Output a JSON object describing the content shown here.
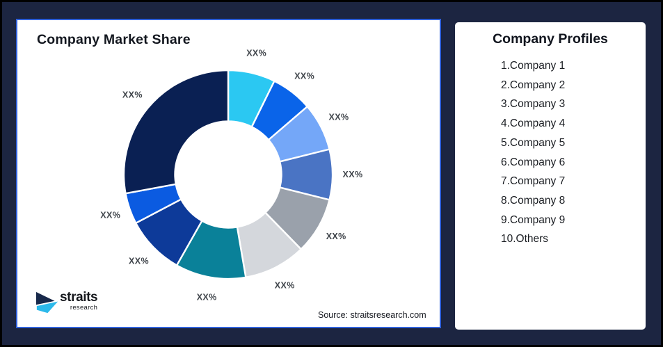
{
  "page": {
    "background": "#1C2541",
    "frame_border": "#000000",
    "card_background": "#FFFFFF",
    "chart_card_border": "#3061DB"
  },
  "chart": {
    "title": "Company Market Share",
    "source": "Source: straitsresearch.com"
  },
  "chart_data": {
    "type": "pie",
    "subtype": "donut",
    "title": "Company Market Share",
    "start_angle_deg": 0,
    "clockwise": true,
    "inner_radius_ratio": 0.51,
    "label_color": "#3F444A",
    "slice_gap_color": "#FFFFFF",
    "slices": [
      {
        "label": "XX%",
        "value": 7.3,
        "color": "#2BC8F2"
      },
      {
        "label": "XX%",
        "value": 6.4,
        "color": "#0A64E9"
      },
      {
        "label": "XX%",
        "value": 7.4,
        "color": "#74A7F8"
      },
      {
        "label": "XX%",
        "value": 7.8,
        "color": "#4A74C4"
      },
      {
        "label": "XX%",
        "value": 8.8,
        "color": "#9AA1AB"
      },
      {
        "label": "XX%",
        "value": 9.6,
        "color": "#D4D7DC"
      },
      {
        "label": "XX%",
        "value": 10.9,
        "color": "#0A8199"
      },
      {
        "label": "XX%",
        "value": 9.1,
        "color": "#0D3A99"
      },
      {
        "label": "XX%",
        "value": 4.8,
        "color": "#0B5BE1"
      },
      {
        "label": "XX%",
        "value": 27.9,
        "color": "#0A2053"
      }
    ]
  },
  "logo": {
    "name": "straits",
    "sub": "research",
    "navy": "#18294B",
    "cyan": "#2CB9EA"
  },
  "profiles": {
    "title": "Company Profiles",
    "items": [
      "1.Company 1",
      "2.Company 2",
      "3.Company 3",
      "4.Company 4",
      "5.Company 5",
      "6.Company 6",
      "7.Company 7",
      "8.Company 8",
      "9.Company 9",
      "10.Others"
    ]
  }
}
